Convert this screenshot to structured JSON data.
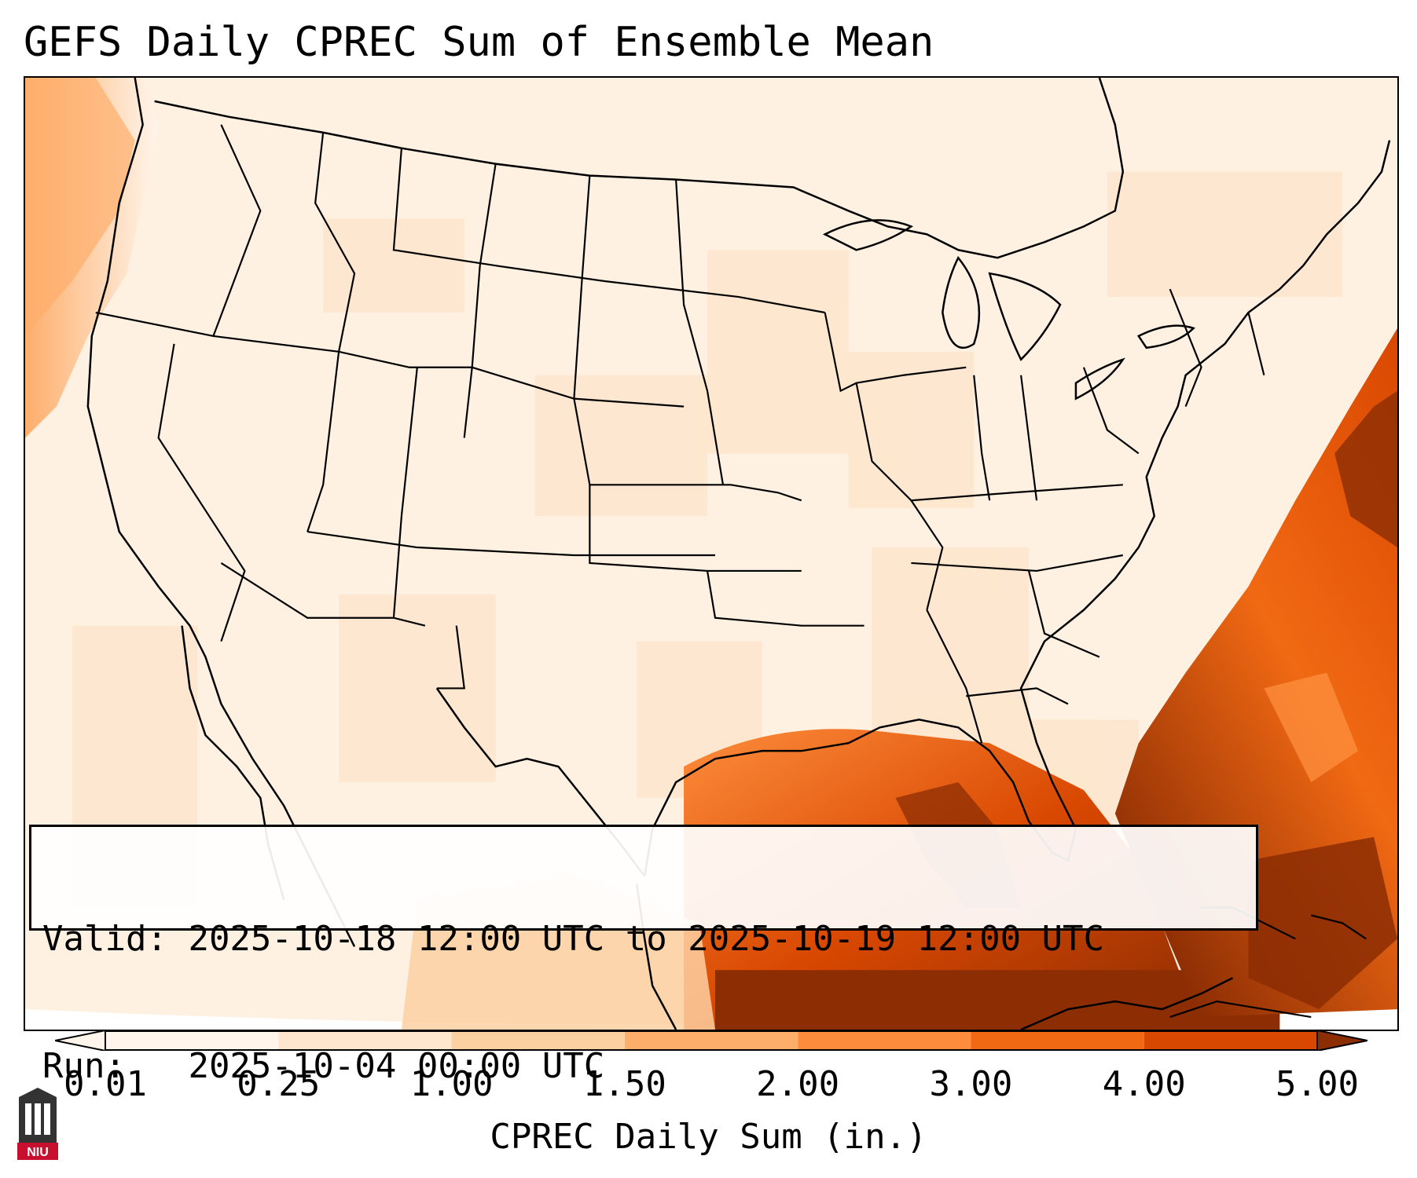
{
  "title": "GEFS Daily CPREC Sum of Ensemble Mean",
  "info": {
    "valid_label": "Valid:",
    "valid_value": "2025-10-18 12:00 UTC to 2025-10-19 12:00 UTC",
    "run_label": "Run:",
    "run_value": "2025-10-04 00:00 UTC"
  },
  "colorbar": {
    "label": "CPREC Daily Sum (in.)",
    "ticks": [
      "0.01",
      "0.25",
      "1.00",
      "1.50",
      "2.00",
      "3.00",
      "4.00",
      "5.00"
    ],
    "colors": [
      "#fff5eb",
      "#fee6ce",
      "#fdd0a2",
      "#fdae6b",
      "#fd8d3c",
      "#f16913",
      "#d94801",
      "#8c2d04"
    ],
    "extend": "both"
  },
  "logo": {
    "text": "NIU",
    "colors": {
      "bg": "#c8102e",
      "fg": "#ffffff",
      "building": "#333333"
    }
  },
  "map": {
    "projection": "lambert-conformal",
    "region": "CONUS"
  }
}
